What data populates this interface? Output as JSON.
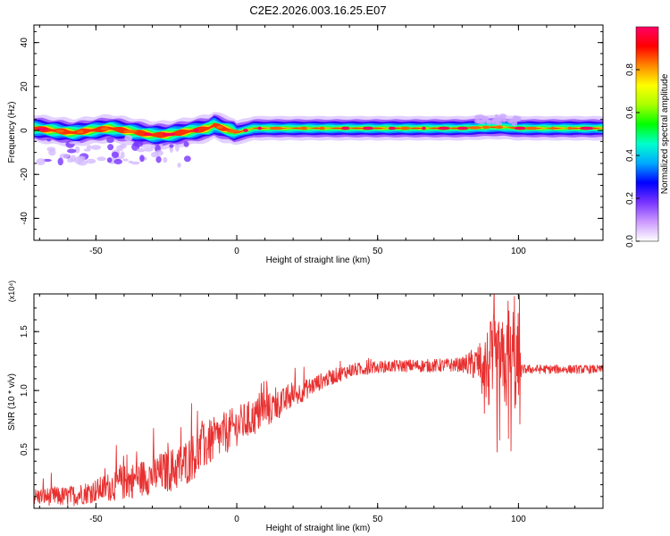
{
  "chart_data": [
    {
      "type": "heatmap",
      "title": "C2E2.2026.003.16.25.E07",
      "xlabel": "Height of straight line (km)",
      "ylabel": "Frequency (Hz)",
      "xlim": [
        -72,
        130
      ],
      "ylim": [
        -50,
        48
      ],
      "xticks": [
        -50,
        0,
        50,
        100
      ],
      "xtick_labels": [
        "-50",
        "0",
        "50",
        "100"
      ],
      "yticks": [
        -40,
        -20,
        0,
        20,
        40
      ],
      "ytick_labels": [
        "-40",
        "-20",
        "0",
        "20",
        "40"
      ],
      "ridge": {
        "x": [
          -72,
          -65,
          -58,
          -52,
          -45,
          -40,
          -35,
          -30,
          -25,
          -20,
          -15,
          -10,
          -8,
          -5,
          -2,
          0,
          3,
          6,
          10,
          20,
          40,
          60,
          80,
          90,
          95,
          100,
          110,
          120,
          130
        ],
        "freq": [
          1,
          0,
          -1,
          0,
          1,
          0,
          -1,
          -2,
          -2,
          -1,
          0,
          1,
          2.5,
          1,
          0,
          -1,
          0,
          1,
          1,
          1,
          1,
          1,
          1,
          1.5,
          1.5,
          1,
          1,
          1,
          1
        ]
      },
      "colorbar": {
        "label": "Normalized spectral amplitude",
        "range": [
          0,
          1
        ],
        "ticks": [
          0.0,
          0.2,
          0.4,
          0.6,
          0.8
        ],
        "tick_labels": [
          "0.0",
          "0.2",
          "0.4",
          "0.6",
          "0.8"
        ],
        "colors": [
          "#ffffff",
          "#cc99ff",
          "#7733ff",
          "#0000ff",
          "#00aaff",
          "#00ffcc",
          "#00ff00",
          "#aaff00",
          "#ffff00",
          "#ff8800",
          "#ff0000",
          "#ff0066"
        ]
      }
    },
    {
      "type": "line",
      "title": "",
      "xlabel": "Height of straight line (km)",
      "ylabel": "SNR (10 * v/v)",
      "yscale_label": "(x10⁴)",
      "xlim": [
        -72,
        130
      ],
      "ylim": [
        0,
        1.82
      ],
      "xticks": [
        -50,
        0,
        50,
        100
      ],
      "xtick_labels": [
        "-50",
        "0",
        "50",
        "100"
      ],
      "yticks": [
        0.5,
        1.0,
        1.5
      ],
      "ytick_labels": [
        "0.5",
        "1.0",
        "1.5"
      ],
      "color": "#e83030",
      "trend": {
        "x": [
          -72,
          -60,
          -50,
          -40,
          -30,
          -20,
          -10,
          0,
          10,
          20,
          30,
          40,
          50,
          60,
          70,
          80,
          88,
          90,
          95,
          100,
          101,
          110,
          120,
          130
        ],
        "snr": [
          0.1,
          0.1,
          0.15,
          0.22,
          0.28,
          0.35,
          0.55,
          0.7,
          0.82,
          0.95,
          1.08,
          1.17,
          1.2,
          1.21,
          1.21,
          1.22,
          1.23,
          1.2,
          1.2,
          1.2,
          1.18,
          1.18,
          1.18,
          1.18
        ]
      },
      "noise_amplitude": {
        "x": [
          -72,
          -50,
          -40,
          -30,
          -20,
          -10,
          0,
          10,
          20,
          30,
          40,
          50,
          80,
          87,
          90,
          99,
          100,
          101,
          130
        ],
        "amp": [
          0.07,
          0.1,
          0.15,
          0.16,
          0.2,
          0.2,
          0.17,
          0.15,
          0.1,
          0.07,
          0.06,
          0.05,
          0.06,
          0.2,
          0.4,
          0.4,
          0.5,
          0.04,
          0.035
        ]
      }
    }
  ]
}
